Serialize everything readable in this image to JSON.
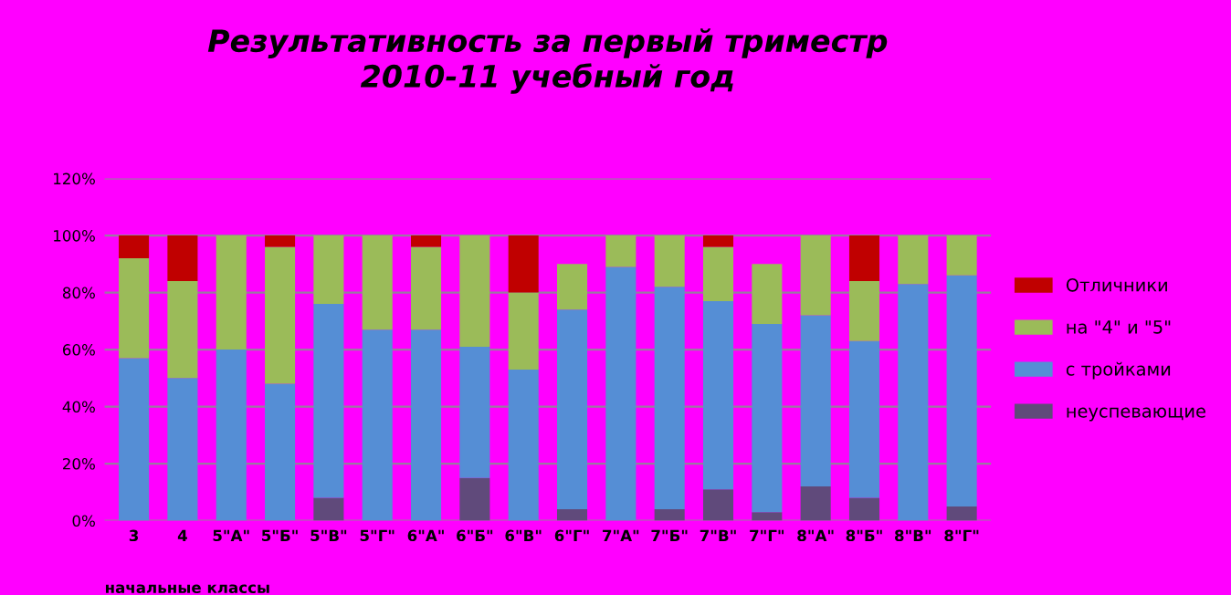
{
  "chart_data": {
    "type": "bar",
    "stacked": true,
    "title": "Результативность за первый триместр\n2010-11 учебный год",
    "categories": [
      "3",
      "4",
      "5\"А\"",
      "5\"Б\"",
      "5\"В\"",
      "5\"Г\"",
      "6\"А\"",
      "6\"Б\"",
      "6\"В\"",
      "6\"Г\"",
      "7\"А\"",
      "7\"Б\"",
      "7\"В\"",
      "7\"Г\"",
      "8\"А\"",
      "8\"Б\"",
      "8\"В\"",
      "8\"Г\""
    ],
    "series": [
      {
        "name": "неуспевающие",
        "color": "#604a7b",
        "values": [
          0,
          0,
          0,
          0,
          8,
          0,
          0,
          15,
          0,
          4,
          0,
          4,
          11,
          3,
          12,
          8,
          0,
          5
        ]
      },
      {
        "name": "с тройками",
        "color": "#558ed5",
        "values": [
          57,
          50,
          60,
          48,
          68,
          67,
          67,
          46,
          53,
          70,
          89,
          78,
          66,
          66,
          60,
          55,
          83,
          81
        ]
      },
      {
        "name": "на \"4\" и \"5\"",
        "color": "#9bbb59",
        "values": [
          35,
          34,
          40,
          48,
          24,
          33,
          29,
          39,
          27,
          16,
          11,
          18,
          19,
          21,
          28,
          21,
          17,
          14
        ]
      },
      {
        "name": "Отличники",
        "color": "#c00000",
        "values": [
          8,
          16,
          0,
          4,
          0,
          0,
          4,
          0,
          20,
          0,
          0,
          0,
          4,
          0,
          0,
          16,
          0,
          0
        ]
      }
    ],
    "ylim": [
      0,
      120
    ],
    "yticks": [
      {
        "value": 0,
        "label": "0%"
      },
      {
        "value": 20,
        "label": "20%"
      },
      {
        "value": 40,
        "label": "40%"
      },
      {
        "value": 60,
        "label": "60%"
      },
      {
        "value": 80,
        "label": "80%"
      },
      {
        "value": 100,
        "label": "100%"
      },
      {
        "value": 120,
        "label": "120%"
      }
    ],
    "grid": "y",
    "legend": "right",
    "annotations": [
      "начальные классы"
    ]
  }
}
